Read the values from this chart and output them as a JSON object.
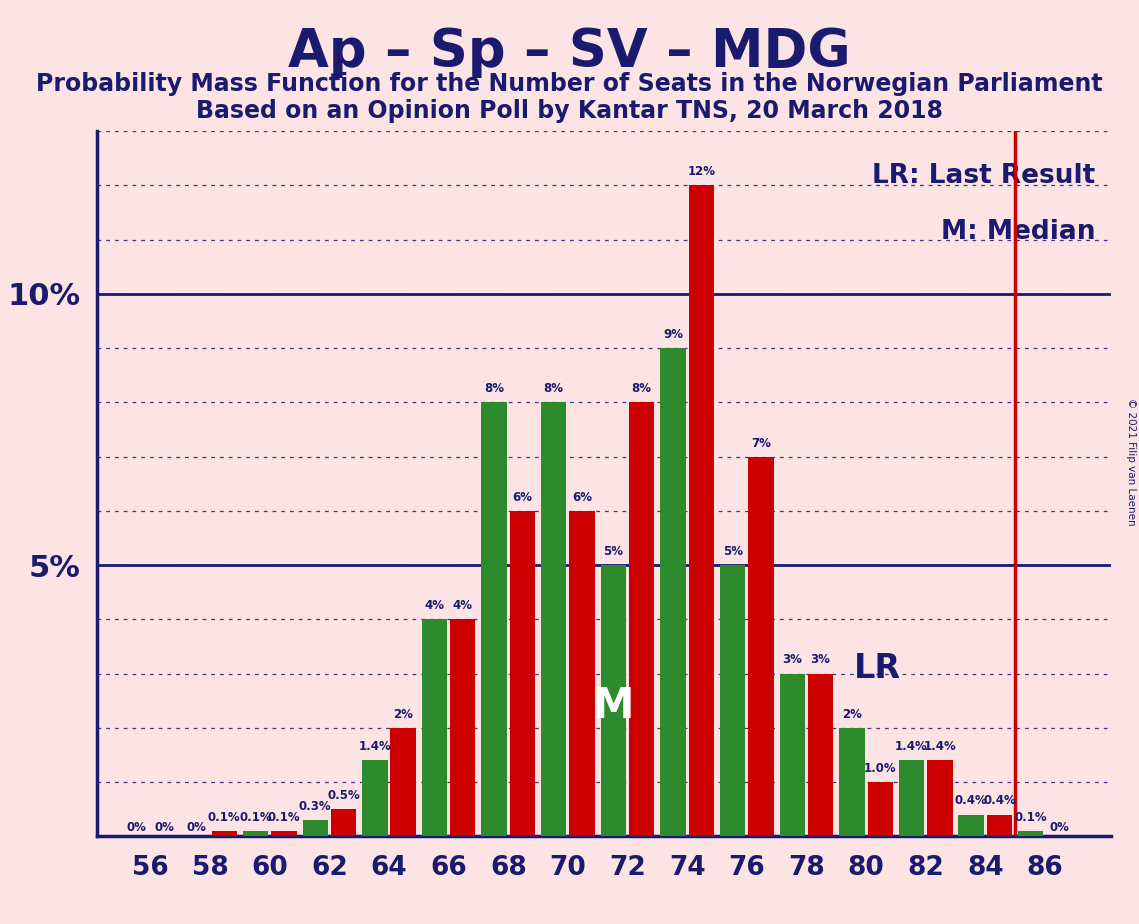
{
  "title1": "Ap – Sp – SV – MDG",
  "title2": "Probability Mass Function for the Number of Seats in the Norwegian Parliament",
  "title3": "Based on an Opinion Poll by Kantar TNS, 20 March 2018",
  "copyright": "© 2021 Filip van Laenen",
  "seats": [
    56,
    58,
    60,
    62,
    64,
    66,
    68,
    70,
    72,
    74,
    76,
    78,
    80,
    82,
    84,
    86
  ],
  "green_values": [
    0.0,
    0.0,
    0.1,
    0.3,
    1.4,
    4.0,
    8.0,
    8.0,
    5.0,
    9.0,
    5.0,
    3.0,
    2.0,
    1.4,
    0.4,
    0.1
  ],
  "red_values": [
    0.0,
    0.1,
    0.1,
    0.5,
    2.0,
    4.0,
    6.0,
    6.0,
    8.0,
    12.0,
    7.0,
    3.0,
    1.0,
    1.4,
    0.4,
    0.0
  ],
  "green_labels": [
    "0%",
    "0%",
    "0.1%",
    "0.3%",
    "1.4%",
    "4%",
    "8%",
    "8%",
    "5%",
    "9%",
    "5%",
    "3%",
    "2%",
    "1.4%",
    "0.4%",
    "0.1%"
  ],
  "red_labels": [
    "0%",
    "0.1%",
    "0.1%",
    "0.5%",
    "2%",
    "4%",
    "6%",
    "6%",
    "8%",
    "12%",
    "7%",
    "3%",
    "1.0%",
    "1.4%",
    "0.4%",
    "0%"
  ],
  "green_color": "#2d8a2d",
  "red_color": "#cc0000",
  "bg_color": "#fce4e4",
  "title1_color": "#1a1a6e",
  "subtitle_color": "#1a1a6e",
  "label_color": "#1a1a6e",
  "lr_color": "#cc0000",
  "median_color": "#ffffff",
  "bar_width": 0.85,
  "bar_gap": 0.1,
  "last_result_x": 85.0,
  "median_seat_idx": 8,
  "ylim_max": 13.0,
  "yticks": [
    5,
    10
  ],
  "ytick_labels": [
    "5%",
    "10%"
  ],
  "legend_lr_text": "LR: Last Result",
  "legend_m_text": "M: Median",
  "median_label": "M",
  "lr_label": "LR",
  "xlim_min": 54.2,
  "xlim_max": 88.2,
  "label_fontsize": 8.5,
  "tick_fontsize": 19,
  "ytick_fontsize": 22,
  "legend_fontsize": 19,
  "median_fontsize": 30,
  "lr_fontsize": 24,
  "title1_fontsize": 38,
  "subtitle_fontsize": 17
}
